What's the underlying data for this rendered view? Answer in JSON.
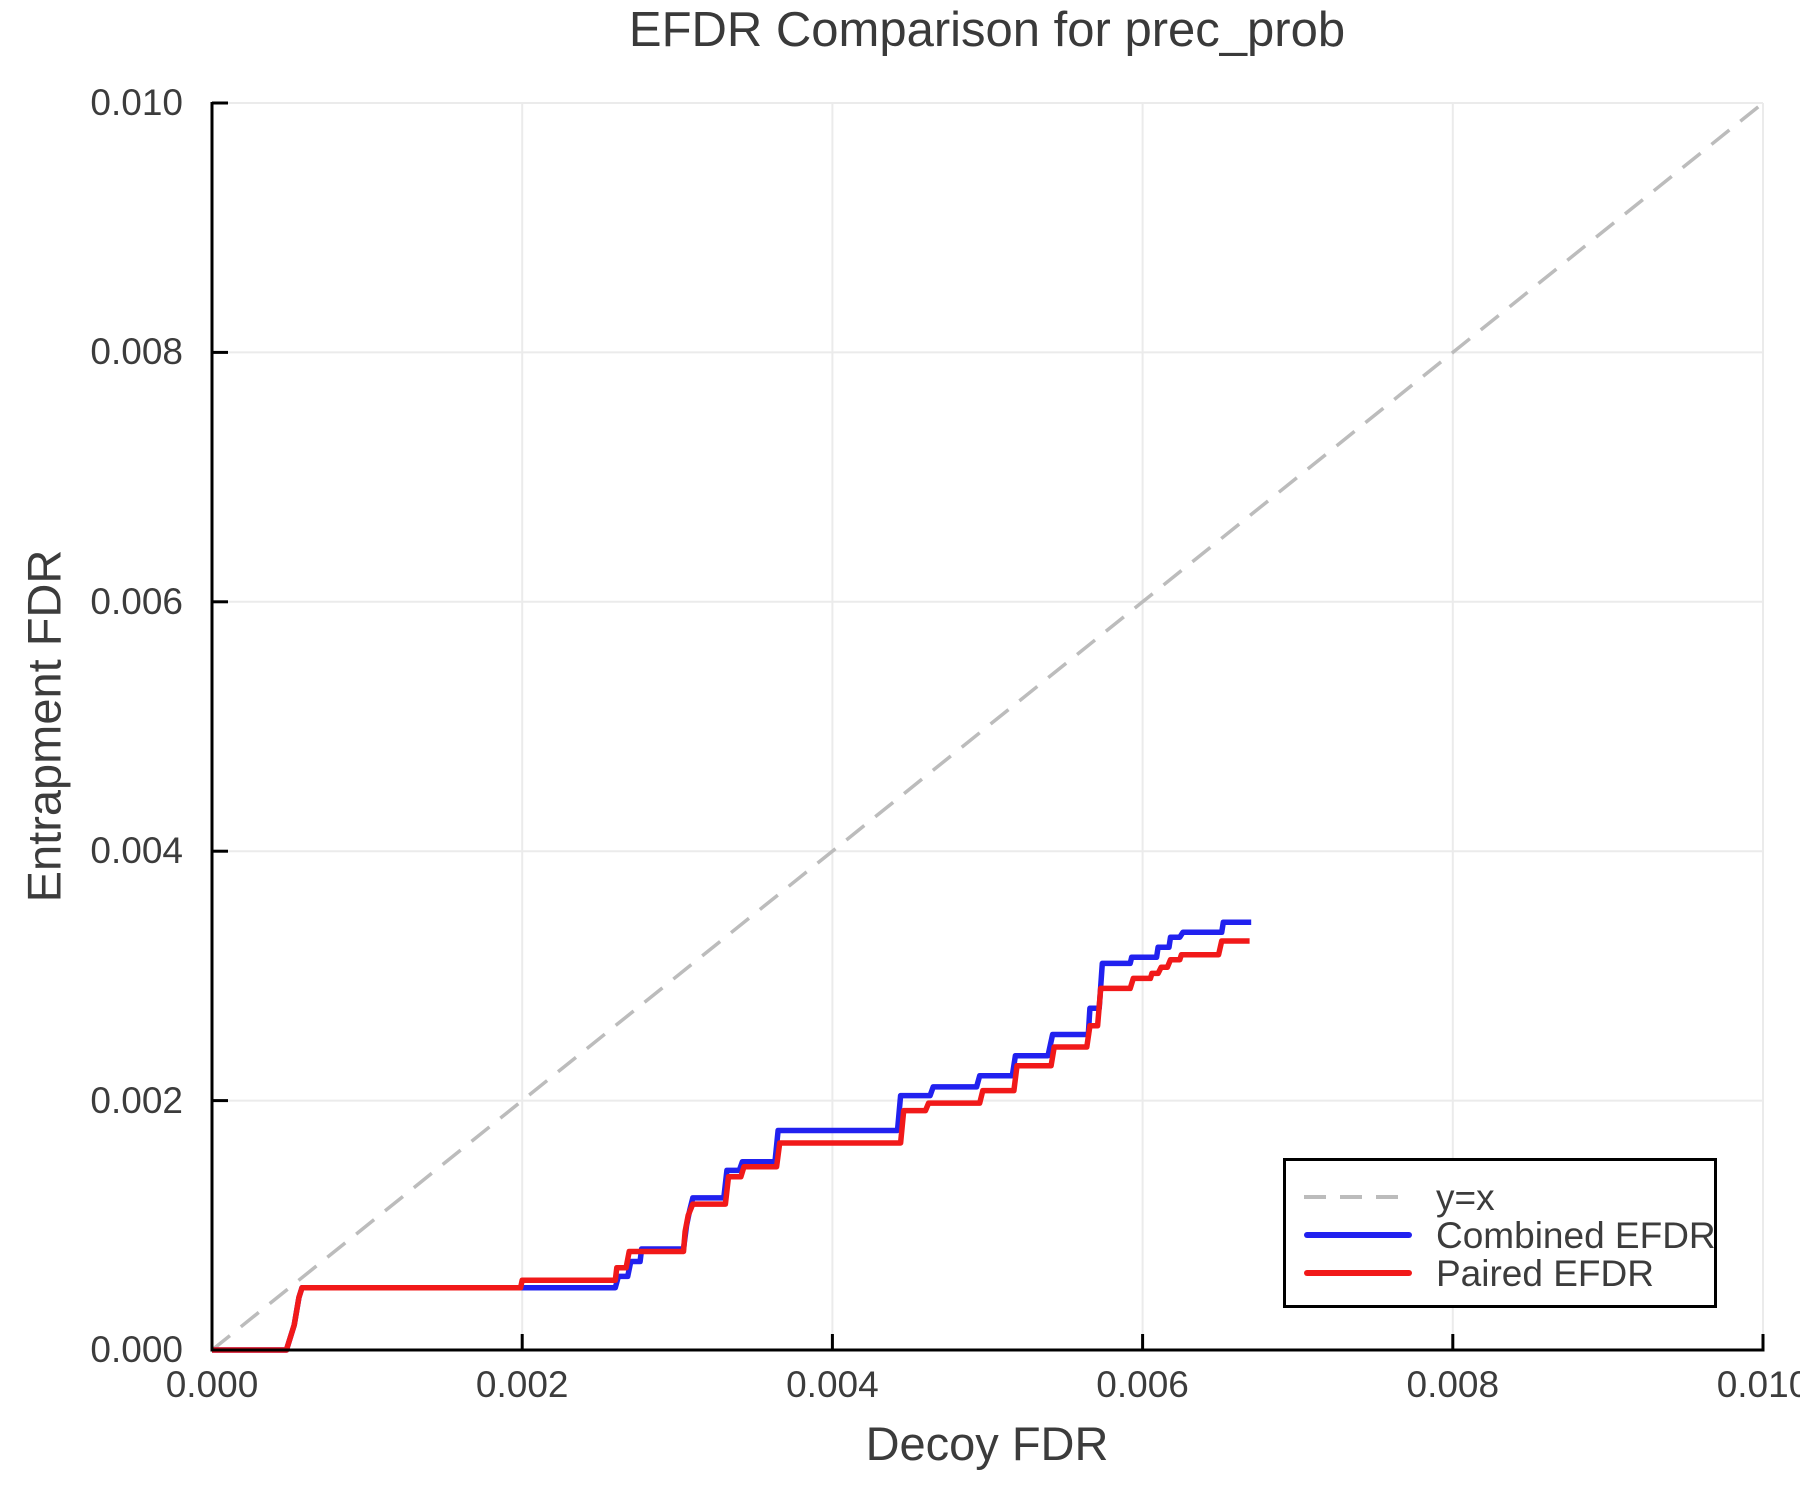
{
  "title": "EFDR Comparison for prec_prob",
  "xlabel": "Decoy FDR",
  "ylabel": "Entrapment FDR",
  "legend": {
    "items": [
      {
        "label": "y=x",
        "style": "dashed",
        "color": "#bcbcbc"
      },
      {
        "label": "Combined EFDR",
        "style": "solid",
        "color": "#2121ef"
      },
      {
        "label": "Paired EFDR",
        "style": "solid",
        "color": "#f11919"
      }
    ]
  },
  "colors": {
    "combined": "#2121ef",
    "paired": "#f11919",
    "identity": "#bcbcbc",
    "grid": "#ebebeb",
    "spine": "#000000",
    "text": "#3c3c3c"
  },
  "chart_data": {
    "type": "line",
    "title": "EFDR Comparison for prec_prob",
    "xlabel": "Decoy FDR",
    "ylabel": "Entrapment FDR",
    "xlim": [
      0.0,
      0.01
    ],
    "ylim": [
      0.0,
      0.01
    ],
    "grid": true,
    "legend_position": "lower right",
    "xticks": [
      {
        "v": 0.0,
        "label": "0.000"
      },
      {
        "v": 0.002,
        "label": "0.002"
      },
      {
        "v": 0.004,
        "label": "0.004"
      },
      {
        "v": 0.006,
        "label": "0.006"
      },
      {
        "v": 0.008,
        "label": "0.008"
      },
      {
        "v": 0.01,
        "label": "0.010"
      }
    ],
    "yticks": [
      {
        "v": 0.0,
        "label": "0.000"
      },
      {
        "v": 0.002,
        "label": "0.002"
      },
      {
        "v": 0.004,
        "label": "0.004"
      },
      {
        "v": 0.006,
        "label": "0.006"
      },
      {
        "v": 0.008,
        "label": "0.008"
      },
      {
        "v": 0.01,
        "label": "0.010"
      }
    ],
    "identity_line": {
      "name": "y=x",
      "from": [
        0.0,
        0.0
      ],
      "to": [
        0.01,
        0.01
      ],
      "style": "dashed"
    },
    "series": [
      {
        "name": "Combined EFDR",
        "color": "#2121ef",
        "points": [
          [
            0.0,
            0.0
          ],
          [
            0.00048,
            0.0
          ],
          [
            0.00053,
            0.0002
          ],
          [
            0.00056,
            0.00042
          ],
          [
            0.00058,
            0.0005
          ],
          [
            0.0026,
            0.0005
          ],
          [
            0.00262,
            0.00059
          ],
          [
            0.00268,
            0.00059
          ],
          [
            0.0027,
            0.00071
          ],
          [
            0.00276,
            0.00071
          ],
          [
            0.00277,
            0.00081
          ],
          [
            0.00304,
            0.00081
          ],
          [
            0.00306,
            0.001
          ],
          [
            0.00308,
            0.00112
          ],
          [
            0.0031,
            0.00122
          ],
          [
            0.0033,
            0.00122
          ],
          [
            0.00332,
            0.00144
          ],
          [
            0.0034,
            0.00144
          ],
          [
            0.00342,
            0.00151
          ],
          [
            0.00363,
            0.00151
          ],
          [
            0.00365,
            0.00176
          ],
          [
            0.00442,
            0.00176
          ],
          [
            0.00444,
            0.00204
          ],
          [
            0.00463,
            0.00204
          ],
          [
            0.00465,
            0.00211
          ],
          [
            0.00493,
            0.00211
          ],
          [
            0.00495,
            0.0022
          ],
          [
            0.00516,
            0.0022
          ],
          [
            0.00518,
            0.00236
          ],
          [
            0.00539,
            0.00236
          ],
          [
            0.00542,
            0.00253
          ],
          [
            0.00565,
            0.00253
          ],
          [
            0.00566,
            0.00274
          ],
          [
            0.00572,
            0.00274
          ],
          [
            0.00574,
            0.0031
          ],
          [
            0.00592,
            0.0031
          ],
          [
            0.00593,
            0.00315
          ],
          [
            0.00609,
            0.00315
          ],
          [
            0.0061,
            0.00323
          ],
          [
            0.00617,
            0.00323
          ],
          [
            0.00618,
            0.00331
          ],
          [
            0.00624,
            0.00331
          ],
          [
            0.00626,
            0.00335
          ],
          [
            0.00651,
            0.00335
          ],
          [
            0.00652,
            0.00343
          ],
          [
            0.0067,
            0.00343
          ]
        ]
      },
      {
        "name": "Paired EFDR",
        "color": "#f11919",
        "points": [
          [
            0.0,
            0.0
          ],
          [
            0.00048,
            0.0
          ],
          [
            0.00053,
            0.0002
          ],
          [
            0.00056,
            0.00042
          ],
          [
            0.00058,
            0.0005
          ],
          [
            0.00199,
            0.0005
          ],
          [
            0.002,
            0.00056
          ],
          [
            0.0026,
            0.00056
          ],
          [
            0.00261,
            0.00066
          ],
          [
            0.00267,
            0.00066
          ],
          [
            0.00269,
            0.00079
          ],
          [
            0.00304,
            0.00079
          ],
          [
            0.00305,
            0.00095
          ],
          [
            0.00307,
            0.00108
          ],
          [
            0.0031,
            0.00117
          ],
          [
            0.00331,
            0.00117
          ],
          [
            0.00333,
            0.00139
          ],
          [
            0.00341,
            0.00139
          ],
          [
            0.00343,
            0.00147
          ],
          [
            0.00364,
            0.00147
          ],
          [
            0.00366,
            0.00166
          ],
          [
            0.00444,
            0.00166
          ],
          [
            0.00446,
            0.00192
          ],
          [
            0.0046,
            0.00192
          ],
          [
            0.00462,
            0.00198
          ],
          [
            0.00495,
            0.00198
          ],
          [
            0.00497,
            0.00208
          ],
          [
            0.00517,
            0.00208
          ],
          [
            0.00519,
            0.00228
          ],
          [
            0.00541,
            0.00228
          ],
          [
            0.00543,
            0.00243
          ],
          [
            0.00564,
            0.00243
          ],
          [
            0.00566,
            0.0026
          ],
          [
            0.00571,
            0.0026
          ],
          [
            0.00573,
            0.0029
          ],
          [
            0.00592,
            0.0029
          ],
          [
            0.00594,
            0.00298
          ],
          [
            0.00605,
            0.00298
          ],
          [
            0.00606,
            0.00302
          ],
          [
            0.0061,
            0.00302
          ],
          [
            0.00612,
            0.00307
          ],
          [
            0.00616,
            0.00307
          ],
          [
            0.00618,
            0.00313
          ],
          [
            0.00624,
            0.00313
          ],
          [
            0.00625,
            0.00317
          ],
          [
            0.00649,
            0.00317
          ],
          [
            0.00651,
            0.00328
          ],
          [
            0.00669,
            0.00328
          ]
        ]
      }
    ]
  }
}
